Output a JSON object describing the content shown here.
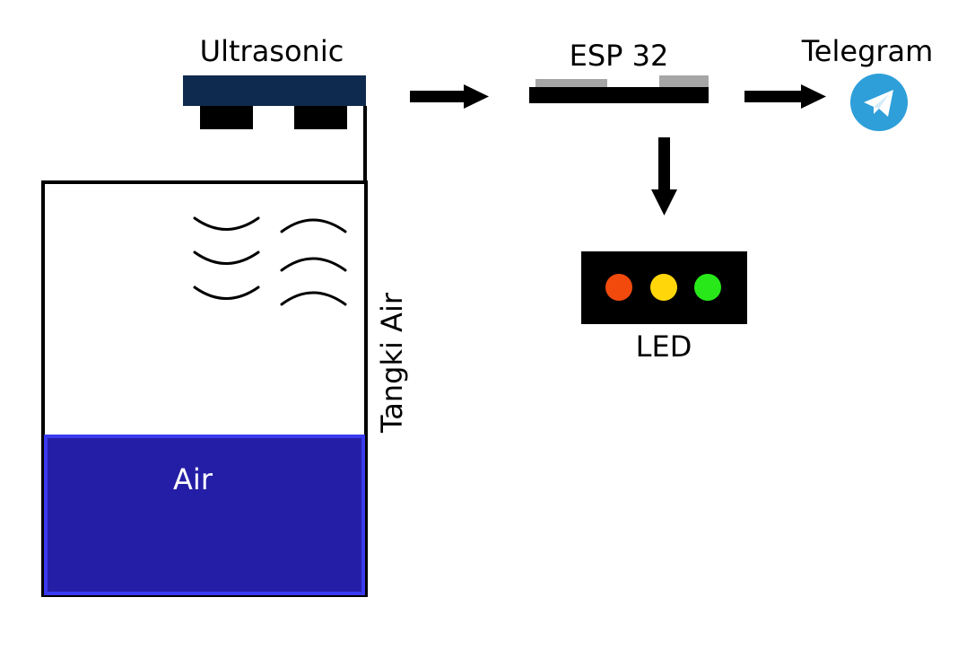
{
  "labels": {
    "ultrasonic": "Ultrasonic",
    "esp32": "ESP 32",
    "telegram": "Telegram",
    "tank": "Tangki Air",
    "water": "Air",
    "led": "LED"
  },
  "colors": {
    "sensor_board": "#0f2a4f",
    "sensor_transducer": "#000000",
    "esp_board": "#000000",
    "esp_chip": "#a6a6a6",
    "water_fill": "#241ea6",
    "water_border": "#3a3af0",
    "telegram_circle": "#2e9fd9",
    "led_panel": "#000000",
    "led_red": "#f24a0d",
    "led_yellow": "#ffd60a",
    "led_green": "#28e81a"
  },
  "icons": {
    "telegram": "telegram-paper-plane-icon",
    "arrow": "arrow-right-icon",
    "arrow_down": "arrow-down-icon",
    "waves": "ultrasonic-wave-icon"
  }
}
